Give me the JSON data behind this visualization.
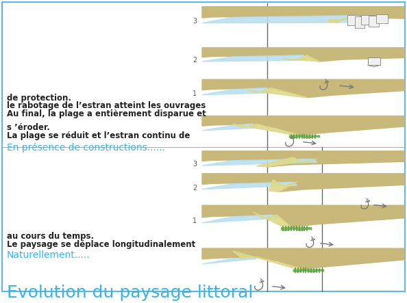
{
  "title": "Evolution du paysage littoral",
  "title_color": "#3ab4e8",
  "title_fontsize": 18,
  "bg_color": "#ffffff",
  "border_color": "#5bb8e8",
  "section1_header": "Naturellement.....",
  "section1_header_color": "#3ab4e8",
  "section1_text_line1": "Le paysage se déplace longitudinalement",
  "section1_text_line2": "au cours du temps.",
  "section2_header": "En présence de constructions......",
  "section2_header_color": "#3ab4e8",
  "section2_text1_line1": "La plage se réduit et l’estran continu de",
  "section2_text1_line2": "s ’éroder.",
  "section2_text2_line1": "Au final, la plage a entièrement disparue et",
  "section2_text2_line2": "le rabotage de l’estran atteint les ouvrages",
  "section2_text2_line3": "de protection.",
  "text_color": "#222222",
  "text_fontsize": 8.5,
  "header_fontsize": 10,
  "sea_color": "#b8dff0",
  "beach_color": "#ddd98a",
  "ground_color": "#c8b87a",
  "subground_color": "#b8a868",
  "veg_color": "#5a9e3a",
  "arrow_color": "#555555",
  "label_color": "#555555",
  "vline_color": "#666666",
  "divider_color": "#aaaaaa"
}
